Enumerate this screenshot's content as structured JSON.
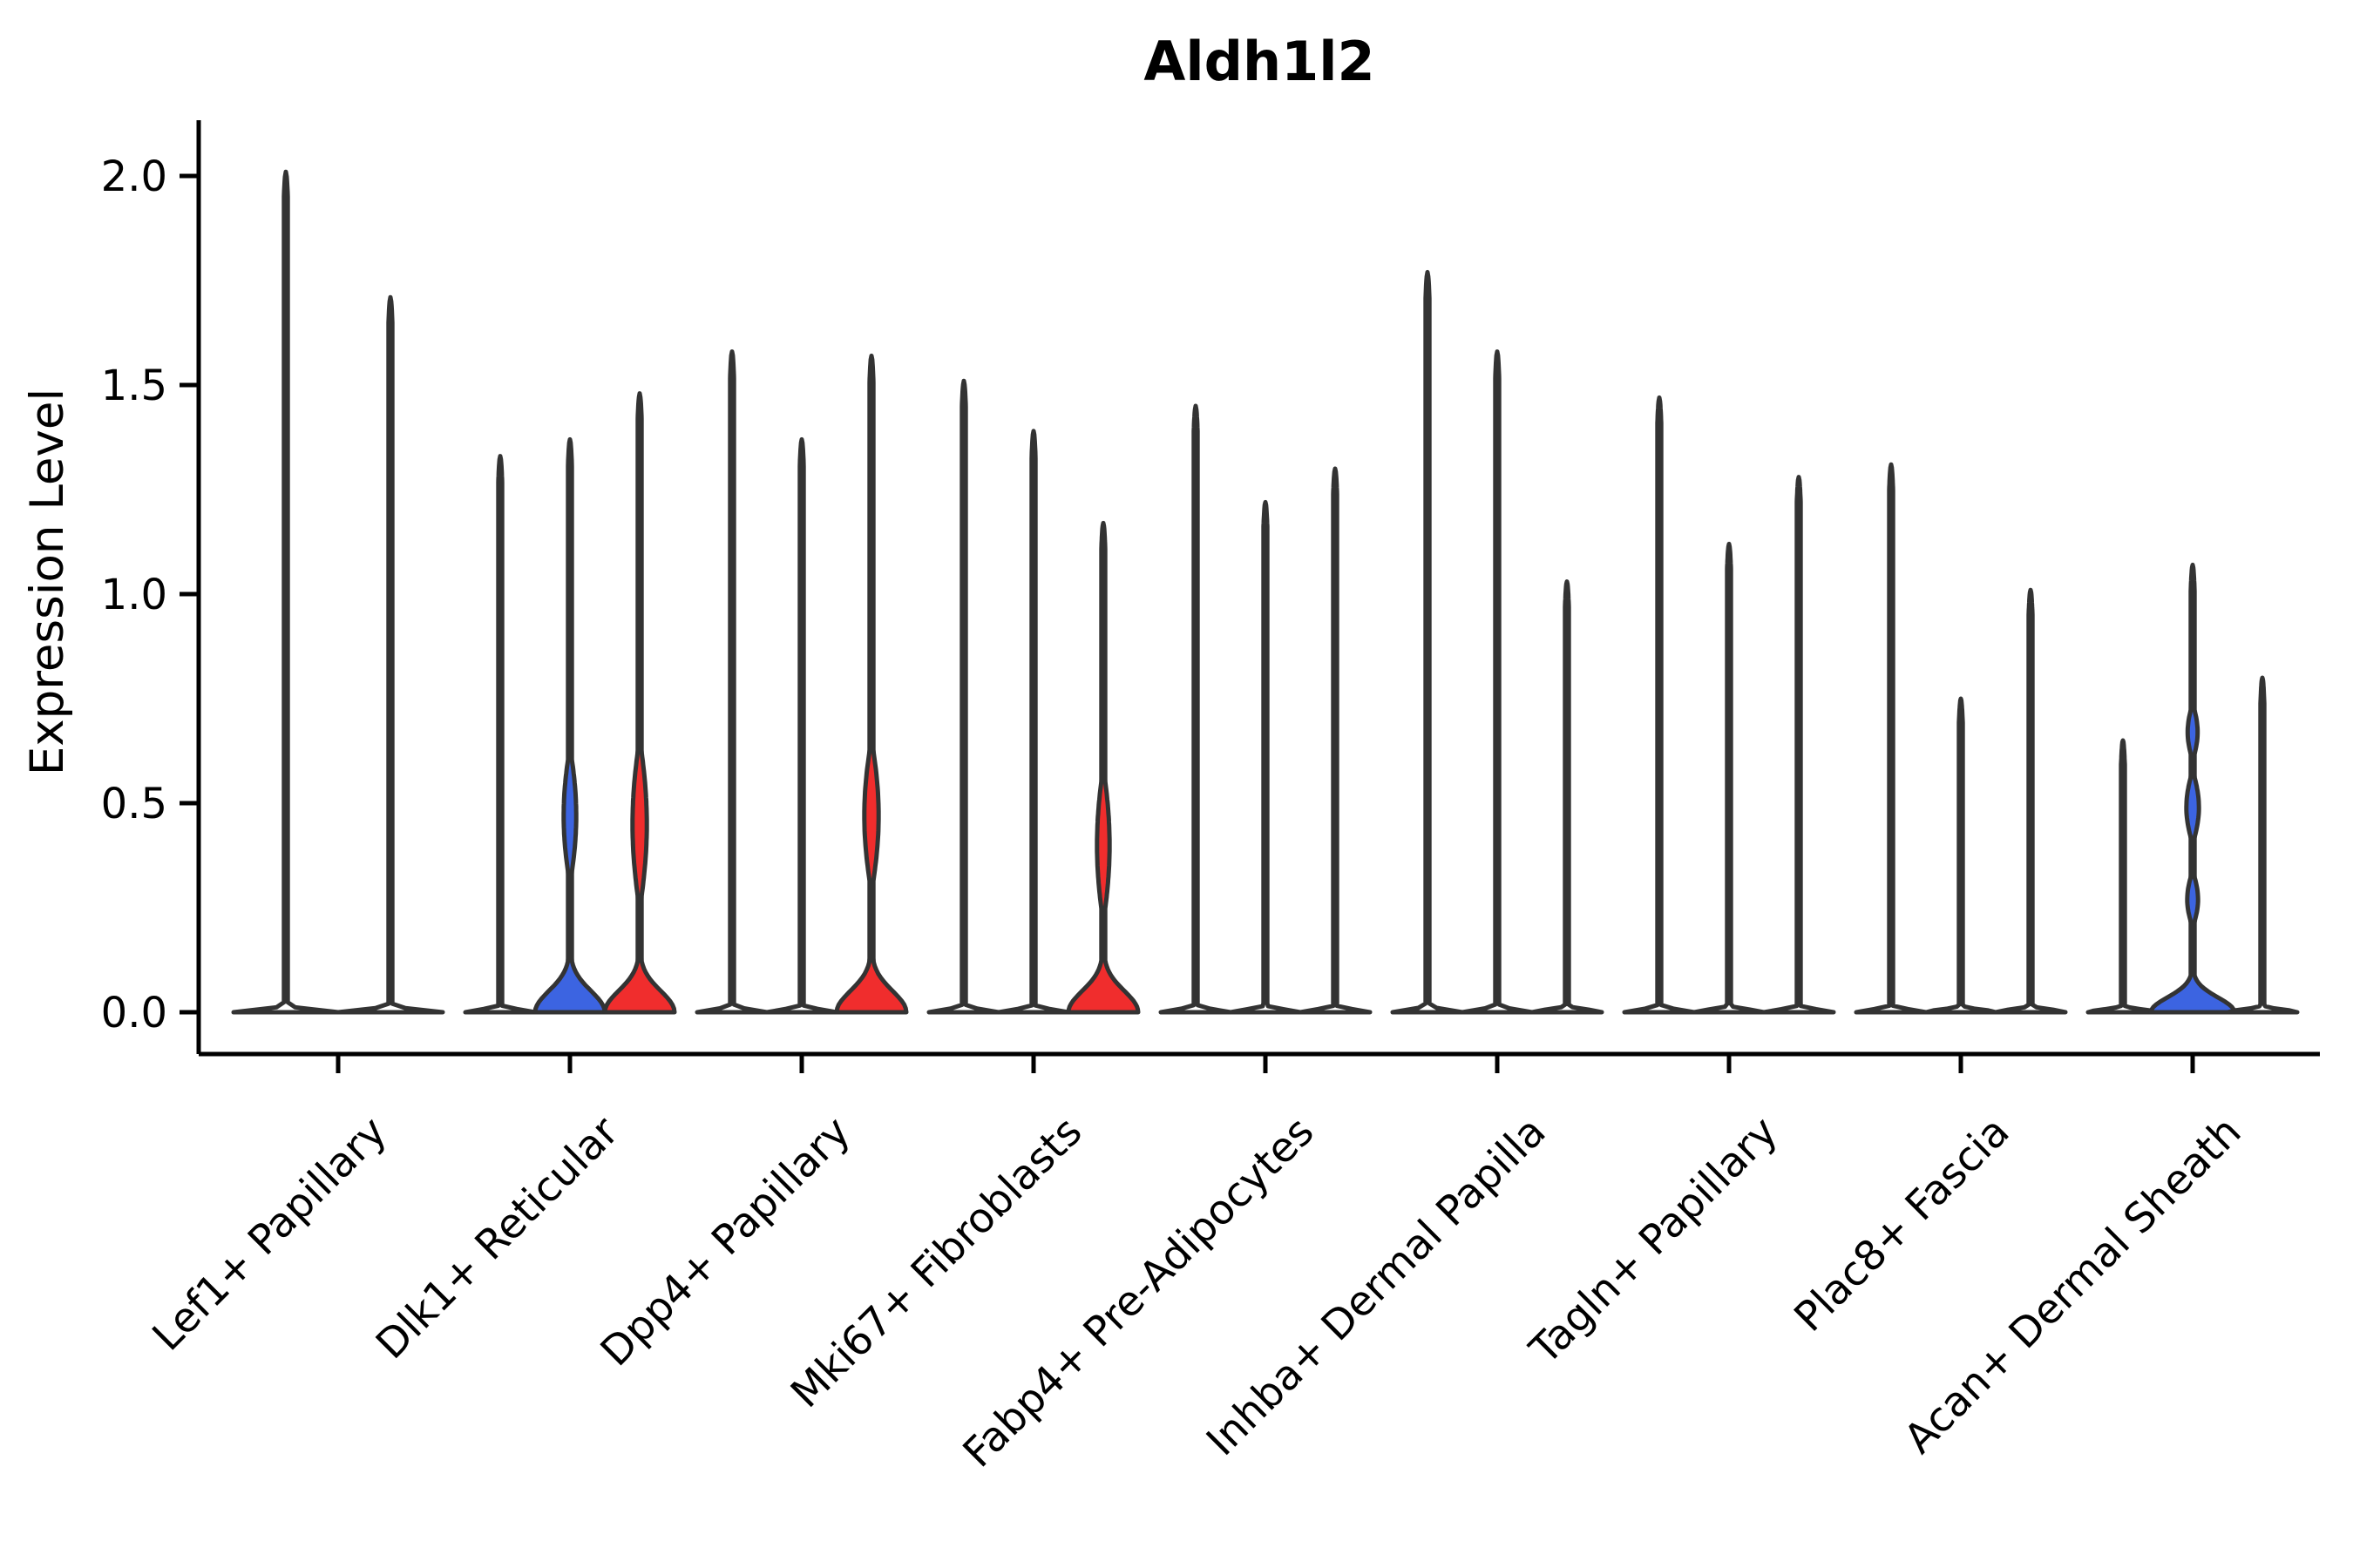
{
  "title": "Aldh1l2",
  "y_axis": {
    "label": "Expression Level",
    "tick_labels": [
      "0.0",
      "0.5",
      "1.0",
      "1.5",
      "2.0"
    ],
    "tick_values": [
      0.0,
      0.5,
      1.0,
      1.5,
      2.0
    ]
  },
  "palette": {
    "blue": "#3C64E1",
    "red": "#F02D2D",
    "white": "#FFFFFF",
    "stroke": "#333333",
    "axis": "#000000"
  },
  "chart_data": {
    "type": "violin",
    "title": "Aldh1l2",
    "xlabel": "",
    "ylabel": "Expression Level",
    "ylim": [
      -0.1,
      2.13
    ],
    "yticks": [
      0.0,
      0.5,
      1.0,
      1.5,
      2.0
    ],
    "ytick_labels": [
      "0.0",
      "0.5",
      "1.0",
      "1.5",
      "2.0"
    ],
    "grid": false,
    "legend": null,
    "note": "Each violin: tip = max expression reached by thin spike; bulges = [center_value, half_height_value, half_width_px] density lobes; colored violins have a raised base mound at 0.",
    "groups": [
      {
        "label": "Lef1+ Papillary",
        "violins": [
          {
            "tip": 2.01,
            "color": "white"
          },
          {
            "tip": 1.71,
            "color": "white"
          }
        ]
      },
      {
        "label": "Dlk1+ Reticular",
        "violins": [
          {
            "tip": 1.33,
            "color": "white"
          },
          {
            "tip": 1.37,
            "color": "blue",
            "bulges": [
              [
                0.47,
                0.15,
                6
              ]
            ]
          },
          {
            "tip": 1.48,
            "color": "red",
            "bulges": [
              [
                0.45,
                0.19,
                7
              ]
            ]
          }
        ]
      },
      {
        "label": "Dpp4+ Papillary",
        "violins": [
          {
            "tip": 1.58,
            "color": "white"
          },
          {
            "tip": 1.37,
            "color": "white"
          },
          {
            "tip": 1.57,
            "color": "red",
            "bulges": [
              [
                0.47,
                0.17,
                7
              ]
            ]
          }
        ]
      },
      {
        "label": "Mki67+ Fibroblasts",
        "violins": [
          {
            "tip": 1.51,
            "color": "white"
          },
          {
            "tip": 1.39,
            "color": "white"
          },
          {
            "tip": 1.17,
            "color": "red",
            "bulges": [
              [
                0.4,
                0.17,
                6
              ]
            ]
          }
        ]
      },
      {
        "label": "Fabp4+ Pre-Adipocytes",
        "violins": [
          {
            "tip": 1.45,
            "color": "white"
          },
          {
            "tip": 1.22,
            "color": "white"
          },
          {
            "tip": 1.3,
            "color": "white"
          }
        ]
      },
      {
        "label": "Inhba+ Dermal Papilla",
        "violins": [
          {
            "tip": 1.77,
            "color": "white"
          },
          {
            "tip": 1.58,
            "color": "white"
          },
          {
            "tip": 1.03,
            "color": "white"
          }
        ]
      },
      {
        "label": "Tagln+ Papillary",
        "violins": [
          {
            "tip": 1.47,
            "color": "white"
          },
          {
            "tip": 1.12,
            "color": "white"
          },
          {
            "tip": 1.28,
            "color": "white"
          }
        ]
      },
      {
        "label": "Plac8+ Fascia",
        "violins": [
          {
            "tip": 1.31,
            "color": "white"
          },
          {
            "tip": 0.75,
            "color": "white"
          },
          {
            "tip": 1.01,
            "color": "white"
          }
        ]
      },
      {
        "label": "Acan+ Dermal Sheath",
        "violins": [
          {
            "tip": 0.65,
            "color": "white"
          },
          {
            "tip": 1.07,
            "color": "blue",
            "wide": true,
            "bulges": [
              [
                0.67,
                0.06,
                4.5
              ],
              [
                0.49,
                0.08,
                6
              ],
              [
                0.27,
                0.06,
                5
              ]
            ]
          },
          {
            "tip": 0.8,
            "color": "white"
          }
        ]
      }
    ]
  }
}
